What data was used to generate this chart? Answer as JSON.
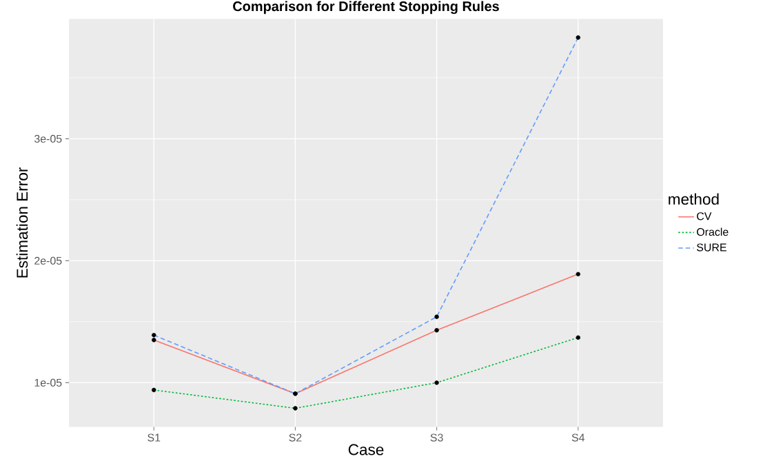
{
  "chart_data": {
    "type": "line",
    "title": "Comparison for Different Stopping Rules",
    "xlabel": "Case",
    "ylabel": "Estimation Error",
    "legend_title": "method",
    "categories": [
      "S1",
      "S2",
      "S3",
      "S4"
    ],
    "series": [
      {
        "name": "CV",
        "color": "#f8766d",
        "line_style": "solid",
        "values": [
          1.35e-05,
          9.1e-06,
          1.43e-05,
          1.89e-05
        ]
      },
      {
        "name": "Oracle",
        "color": "#00ba38",
        "line_style": "dotted",
        "values": [
          9.4e-06,
          7.9e-06,
          1e-05,
          1.37e-05
        ]
      },
      {
        "name": "SURE",
        "color": "#619cff",
        "line_style": "dashed",
        "values": [
          1.39e-05,
          9.1e-06,
          1.54e-05,
          3.83e-05
        ]
      }
    ],
    "ylim": [
      6.38e-06,
      3.982e-05
    ],
    "yticks": [
      {
        "value": 1e-05,
        "label": "1e-05"
      },
      {
        "value": 1.5e-05,
        "label": null
      },
      {
        "value": 2e-05,
        "label": "2e-05"
      },
      {
        "value": 2.5e-05,
        "label": null
      },
      {
        "value": 3e-05,
        "label": "3e-05"
      },
      {
        "value": 3.5e-05,
        "label": null
      }
    ],
    "grid": true,
    "legend": "right",
    "marker": "circle"
  }
}
